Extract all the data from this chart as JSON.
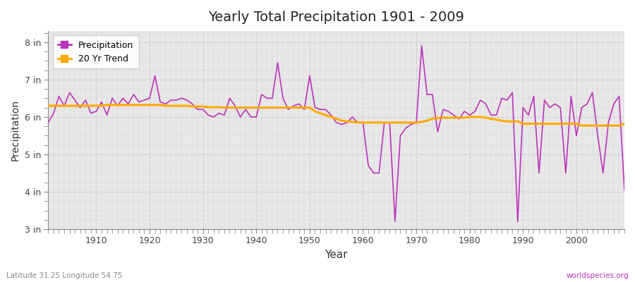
{
  "title": "Yearly Total Precipitation 1901 - 2009",
  "xlabel": "Year",
  "ylabel": "Precipitation",
  "footnote_left": "Latitude 31.25 Longitude 54.75",
  "footnote_right": "worldspecies.org",
  "line_color": "#bb33bb",
  "trend_color": "#ffaa00",
  "bg_color": "#ffffff",
  "plot_bg_color": "#e8e8e8",
  "grid_color": "#cccccc",
  "ylim_min": 3.0,
  "ylim_max": 8.3,
  "yticks": [
    3,
    4,
    5,
    6,
    7,
    8
  ],
  "ytick_labels": [
    "3 in",
    "4 in",
    "5 in",
    "6 in",
    "7 in",
    "8 in"
  ],
  "years": [
    1901,
    1902,
    1903,
    1904,
    1905,
    1906,
    1907,
    1908,
    1909,
    1910,
    1911,
    1912,
    1913,
    1914,
    1915,
    1916,
    1917,
    1918,
    1919,
    1920,
    1921,
    1922,
    1923,
    1924,
    1925,
    1926,
    1927,
    1928,
    1929,
    1930,
    1931,
    1932,
    1933,
    1934,
    1935,
    1936,
    1937,
    1938,
    1939,
    1940,
    1941,
    1942,
    1943,
    1944,
    1945,
    1946,
    1947,
    1948,
    1949,
    1950,
    1951,
    1952,
    1953,
    1954,
    1955,
    1956,
    1957,
    1958,
    1959,
    1960,
    1961,
    1962,
    1963,
    1964,
    1965,
    1966,
    1967,
    1968,
    1969,
    1970,
    1971,
    1972,
    1973,
    1974,
    1975,
    1976,
    1977,
    1978,
    1979,
    1980,
    1981,
    1982,
    1983,
    1984,
    1985,
    1986,
    1987,
    1988,
    1989,
    1990,
    1991,
    1992,
    1993,
    1994,
    1995,
    1996,
    1997,
    1998,
    1999,
    2000,
    2001,
    2002,
    2003,
    2004,
    2005,
    2006,
    2007,
    2008,
    2009
  ],
  "precip": [
    5.85,
    6.1,
    6.55,
    6.3,
    6.65,
    6.45,
    6.25,
    6.45,
    6.1,
    6.15,
    6.4,
    6.05,
    6.5,
    6.3,
    6.5,
    6.35,
    6.6,
    6.4,
    6.45,
    6.5,
    7.1,
    6.4,
    6.35,
    6.45,
    6.45,
    6.5,
    6.45,
    6.35,
    6.2,
    6.2,
    6.05,
    6.0,
    6.1,
    6.05,
    6.5,
    6.3,
    6.0,
    6.2,
    6.0,
    6.0,
    6.6,
    6.5,
    6.5,
    7.45,
    6.5,
    6.2,
    6.3,
    6.35,
    6.2,
    7.1,
    6.25,
    6.2,
    6.2,
    6.05,
    5.85,
    5.8,
    5.85,
    6.0,
    5.85,
    5.85,
    4.7,
    4.5,
    4.5,
    5.85,
    5.85,
    3.2,
    5.5,
    5.7,
    5.8,
    5.85,
    7.9,
    6.6,
    6.6,
    5.6,
    6.2,
    6.15,
    6.05,
    5.95,
    6.15,
    6.05,
    6.15,
    6.45,
    6.35,
    6.05,
    6.05,
    6.5,
    6.45,
    6.65,
    3.2,
    6.25,
    6.05,
    6.55,
    4.5,
    6.45,
    6.25,
    6.35,
    6.25,
    4.5,
    6.55,
    5.5,
    6.25,
    6.35,
    6.65,
    5.5,
    4.5,
    5.85,
    6.35,
    6.55,
    4.05
  ],
  "trend": [
    6.3,
    6.3,
    6.3,
    6.3,
    6.3,
    6.3,
    6.3,
    6.3,
    6.3,
    6.3,
    6.3,
    6.32,
    6.32,
    6.32,
    6.32,
    6.32,
    6.32,
    6.32,
    6.32,
    6.32,
    6.32,
    6.32,
    6.3,
    6.3,
    6.3,
    6.3,
    6.3,
    6.28,
    6.28,
    6.28,
    6.26,
    6.26,
    6.26,
    6.25,
    6.25,
    6.25,
    6.25,
    6.25,
    6.25,
    6.25,
    6.25,
    6.25,
    6.25,
    6.25,
    6.25,
    6.25,
    6.25,
    6.25,
    6.25,
    6.25,
    6.15,
    6.1,
    6.05,
    6.0,
    5.95,
    5.9,
    5.88,
    5.87,
    5.86,
    5.85,
    5.85,
    5.85,
    5.85,
    5.85,
    5.85,
    5.85,
    5.85,
    5.85,
    5.85,
    5.85,
    5.87,
    5.9,
    5.95,
    5.97,
    5.98,
    5.98,
    5.98,
    5.98,
    5.98,
    6.0,
    6.0,
    6.0,
    5.98,
    5.95,
    5.93,
    5.9,
    5.88,
    5.88,
    5.88,
    5.82,
    5.82,
    5.82,
    5.82,
    5.82,
    5.82,
    5.82,
    5.82,
    5.82,
    5.82,
    5.82,
    5.77,
    5.77,
    5.77,
    5.77,
    5.77,
    5.77,
    5.77,
    5.77,
    5.82
  ]
}
